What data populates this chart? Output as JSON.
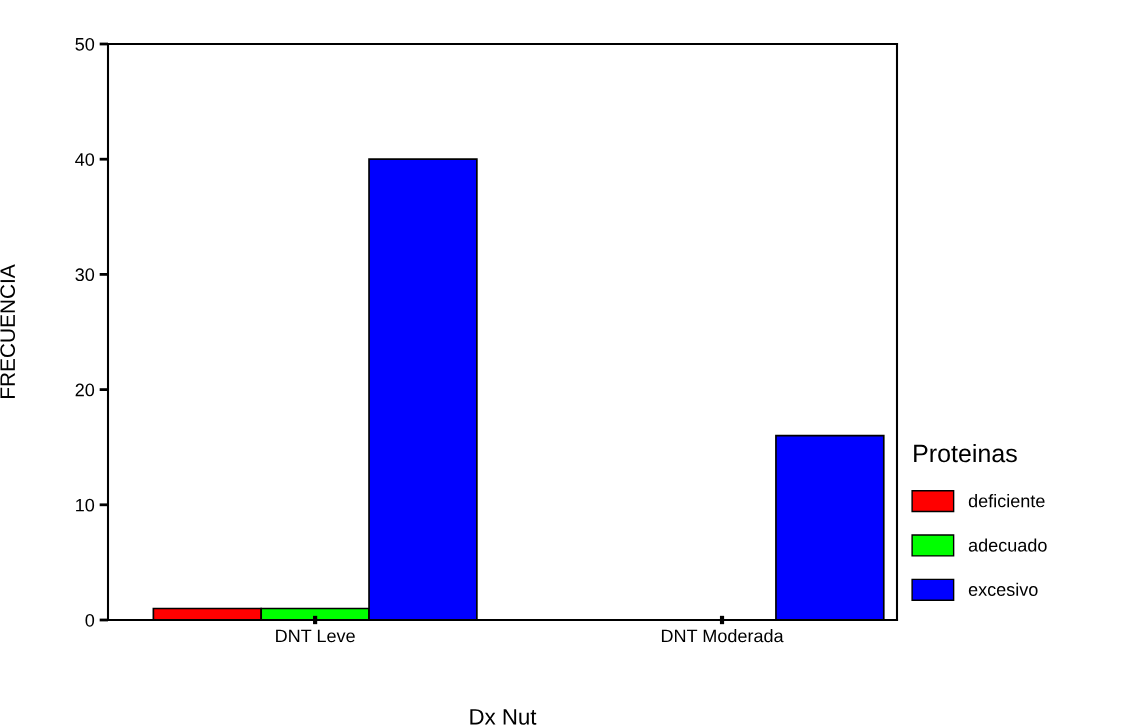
{
  "chart_data": {
    "type": "bar",
    "xlabel": "Dx Nut",
    "ylabel": "FRECUENCIA",
    "legend_title": "Proteinas",
    "categories": [
      "DNT Leve",
      "DNT Moderada"
    ],
    "series": [
      {
        "name": "deficiente",
        "color": "#ff0000",
        "values": [
          1,
          null
        ]
      },
      {
        "name": "adecuado",
        "color": "#00ff00",
        "values": [
          1,
          null
        ]
      },
      {
        "name": "excesivo",
        "color": "#0000ff",
        "values": [
          40,
          16
        ]
      }
    ],
    "ylim": [
      0,
      50
    ],
    "yticks": [
      0,
      10,
      20,
      30,
      40,
      50
    ],
    "grid": false,
    "legend": "right"
  }
}
